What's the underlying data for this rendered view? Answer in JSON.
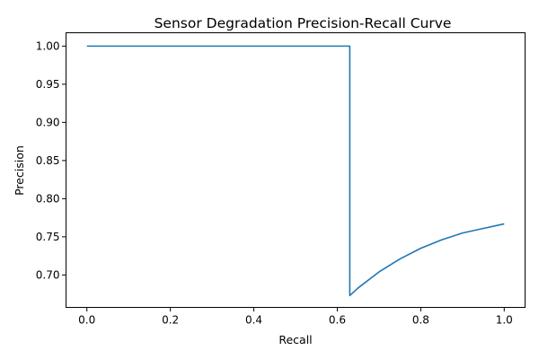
{
  "chart_data": {
    "type": "line",
    "title": "Sensor Degradation Precision-Recall Curve",
    "xlabel": "Recall",
    "ylabel": "Precision",
    "xlim": [
      -0.05,
      1.05
    ],
    "ylim": [
      0.6575,
      1.0175
    ],
    "xticks": [
      0.0,
      0.2,
      0.4,
      0.6,
      0.8,
      1.0
    ],
    "xtick_labels": [
      "0.0",
      "0.2",
      "0.4",
      "0.6",
      "0.8",
      "1.0"
    ],
    "yticks": [
      0.7,
      0.75,
      0.8,
      0.85,
      0.9,
      0.95,
      1.0
    ],
    "ytick_labels": [
      "0.70",
      "0.75",
      "0.80",
      "0.85",
      "0.90",
      "0.95",
      "1.00"
    ],
    "grid": false,
    "series": [
      {
        "color": "#1f77b4",
        "x": [
          0.0,
          0.1,
          0.2,
          0.3,
          0.4,
          0.5,
          0.6,
          0.63,
          0.63,
          0.65,
          0.7,
          0.75,
          0.8,
          0.85,
          0.9,
          0.95,
          1.0
        ],
        "y": [
          1.0,
          1.0,
          1.0,
          1.0,
          1.0,
          1.0,
          1.0,
          1.0,
          0.673,
          0.683,
          0.704,
          0.721,
          0.735,
          0.746,
          0.755,
          0.761,
          0.767
        ]
      }
    ]
  }
}
